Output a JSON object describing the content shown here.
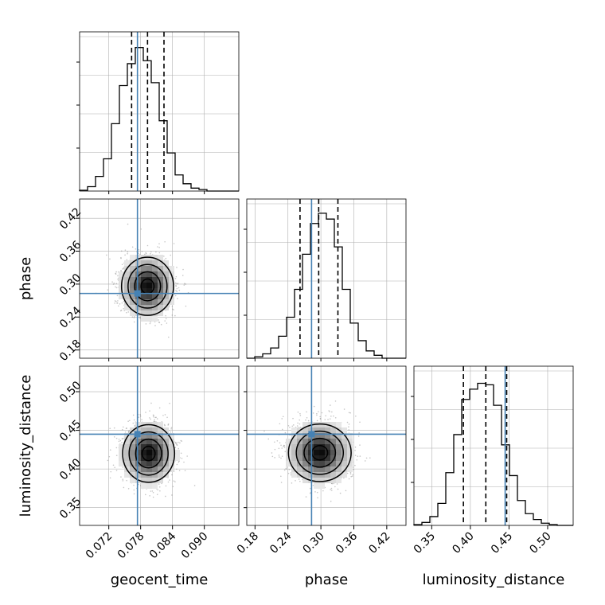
{
  "chart_data": {
    "type": "corner",
    "parameters": [
      "geocent_time",
      "phase",
      "luminosity_distance"
    ],
    "truths": {
      "geocent_time": 0.0774,
      "phase": 0.283,
      "luminosity_distance": 0.445
    },
    "quantiles": {
      "geocent_time": [
        0.0763,
        0.0793,
        0.0824
      ],
      "phase": [
        0.262,
        0.296,
        0.331
      ],
      "luminosity_distance": [
        0.391,
        0.42,
        0.447
      ]
    },
    "ranges": {
      "geocent_time": [
        0.0665,
        0.0965
      ],
      "phase": [
        0.165,
        0.455
      ],
      "luminosity_distance": [
        0.327,
        0.533
      ]
    },
    "ticks": {
      "geocent_time": [
        0.072,
        0.078,
        0.084,
        0.09
      ],
      "phase": [
        0.18,
        0.24,
        0.3,
        0.36,
        0.42
      ],
      "luminosity_distance": [
        0.35,
        0.4,
        0.45,
        0.5
      ]
    },
    "tick_labels": {
      "geocent_time": [
        "0.072",
        "0.078",
        "0.084",
        "0.090"
      ],
      "phase": [
        "0.18",
        "0.24",
        "0.30",
        "0.36",
        "0.42"
      ],
      "luminosity_distance": [
        "0.35",
        "0.40",
        "0.45",
        "0.50"
      ]
    },
    "axis_labels": {
      "geocent_time": "geocent_time",
      "phase": "phase",
      "luminosity_distance": "luminosity_distance"
    },
    "histograms": {
      "geocent_time": {
        "edges": [
          0.0665,
          0.068,
          0.0695,
          0.071,
          0.0725,
          0.074,
          0.0755,
          0.077,
          0.0785,
          0.08,
          0.0815,
          0.083,
          0.0845,
          0.086,
          0.0875,
          0.089,
          0.0905,
          0.092,
          0.0935,
          0.095,
          0.0965
        ],
        "counts": [
          0.005,
          0.03,
          0.1,
          0.22,
          0.46,
          0.72,
          0.87,
          0.98,
          0.89,
          0.74,
          0.48,
          0.26,
          0.11,
          0.05,
          0.02,
          0.01,
          0.0,
          0.0,
          0.0,
          0.0
        ]
      },
      "phase": {
        "edges": [
          0.165,
          0.1795,
          0.194,
          0.2085,
          0.223,
          0.2375,
          0.252,
          0.2665,
          0.281,
          0.2955,
          0.31,
          0.3245,
          0.339,
          0.3535,
          0.368,
          0.3825,
          0.397,
          0.4115,
          0.426,
          0.4405,
          0.455
        ],
        "counts": [
          0.0,
          0.01,
          0.03,
          0.07,
          0.15,
          0.28,
          0.47,
          0.71,
          0.92,
          0.99,
          0.95,
          0.76,
          0.47,
          0.24,
          0.12,
          0.05,
          0.02,
          0.0,
          0.0,
          0.0
        ]
      },
      "luminosity_distance": {
        "edges": [
          0.327,
          0.3373,
          0.3476,
          0.3579,
          0.3682,
          0.3785,
          0.3888,
          0.3991,
          0.4094,
          0.4197,
          0.43,
          0.4403,
          0.4506,
          0.4609,
          0.4712,
          0.4815,
          0.4918,
          0.5021,
          0.5124,
          0.5227,
          0.533
        ],
        "counts": [
          0.005,
          0.02,
          0.06,
          0.15,
          0.36,
          0.62,
          0.86,
          0.93,
          0.97,
          0.96,
          0.82,
          0.55,
          0.34,
          0.17,
          0.08,
          0.04,
          0.015,
          0.005,
          0.0,
          0.0
        ]
      }
    },
    "density_2d": [
      {
        "x": "geocent_time",
        "y": "phase",
        "mean": [
          0.0793,
          0.296
        ],
        "sigma": [
          0.0024,
          0.027
        ]
      },
      {
        "x": "geocent_time",
        "y": "luminosity_distance",
        "mean": [
          0.0795,
          0.42
        ],
        "sigma": [
          0.0024,
          0.019
        ]
      },
      {
        "x": "phase",
        "y": "luminosity_distance",
        "mean": [
          0.298,
          0.421
        ],
        "sigma": [
          0.028,
          0.019
        ]
      }
    ],
    "colors": {
      "truth": "#4682b4",
      "hist": "#000000",
      "grid": "#b0b0b0",
      "scatter": "#808080"
    }
  }
}
